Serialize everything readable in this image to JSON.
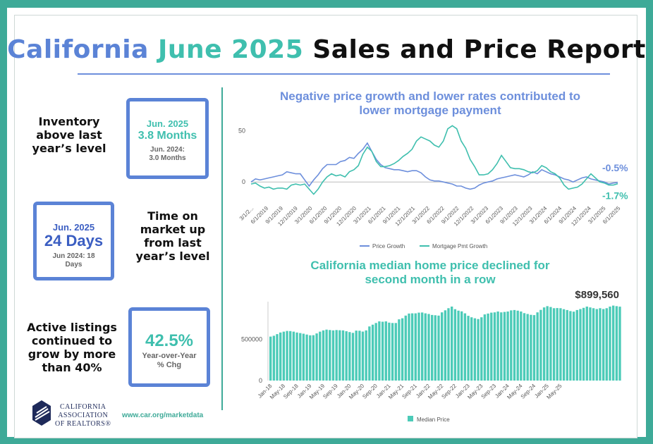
{
  "title": {
    "part1": "California",
    "part2": "June 2025",
    "part3": "Sales and Price Report"
  },
  "stats": {
    "inventory_label": [
      "Inventory",
      "above last",
      "year’s level"
    ],
    "inventory_box": {
      "date": "Jun. 2025",
      "value": "3.8 Months",
      "prior": [
        "Jun. 2024:",
        "3.0 Months"
      ]
    },
    "dom_box": {
      "date": "Jun. 2025",
      "value": "24 Days",
      "prior": [
        "Jun 2024: 18",
        "Days"
      ]
    },
    "dom_label": [
      "Time on",
      "market up",
      "from last",
      "year’s level"
    ],
    "listings_label": [
      "Active listings",
      "continued to",
      "grow by more",
      "than 40%"
    ],
    "listings_box": {
      "value": "42.5%",
      "sub": [
        "Year-over-Year",
        "% Chg"
      ]
    }
  },
  "logo": {
    "lines": [
      "CALIFORNIA",
      "ASSOCIATION",
      "OF REALTORS®"
    ]
  },
  "url": "www.car.org/marketdata",
  "colors": {
    "teal": "#3fbfae",
    "blue": "#6d8fdc",
    "frame": "#3eaa98",
    "bar": "#4ccbb8"
  },
  "chart_data": [
    {
      "type": "line",
      "title": [
        "Negative price growth and lower rates contributed to",
        "lower mortgage payment"
      ],
      "x_labels": [
        "3/1/2...",
        "6/1/2019",
        "9/1/2019",
        "12/1/2019",
        "3/1/2020",
        "6/1/2020",
        "9/1/2020",
        "12/1/2020",
        "3/1/2021",
        "6/1/2021",
        "9/1/2021",
        "12/1/2021",
        "3/1/2022",
        "6/1/2022",
        "9/1/2022",
        "12/1/2022",
        "3/1/2023",
        "6/1/2023",
        "9/1/2023",
        "12/1/2023",
        "3/1/2024",
        "6/1/2024",
        "9/1/2024",
        "12/1/2024",
        "3/1/2025",
        "6/1/2025"
      ],
      "y_ticks": [
        0,
        50
      ],
      "ylim": [
        -15,
        58
      ],
      "series": [
        {
          "name": "Price Growth",
          "color": "#6d8fdc",
          "values": [
            0,
            3,
            2,
            3,
            4,
            5,
            6,
            7,
            10,
            9,
            8,
            8,
            2,
            -4,
            2,
            7,
            13,
            17,
            17,
            17,
            20,
            21,
            24,
            23,
            28,
            32,
            38,
            30,
            22,
            17,
            14,
            13,
            12,
            12,
            11,
            10,
            11,
            11,
            9,
            5,
            2,
            1,
            1,
            0,
            -1,
            -2,
            -4,
            -4,
            -6,
            -7,
            -6,
            -3,
            -1,
            0,
            1,
            3,
            4,
            5,
            6,
            7,
            6,
            5,
            7,
            10,
            8,
            12,
            10,
            8,
            7,
            5,
            3,
            2,
            0,
            2,
            4,
            5,
            3,
            2,
            1,
            0,
            -2,
            -1,
            -0.5
          ]
        },
        {
          "name": "Mortgage Pmt Growth",
          "color": "#3fbfae",
          "values": [
            -2,
            -1,
            -4,
            -6,
            -5,
            -7,
            -6,
            -6,
            -7,
            -3,
            -2,
            -3,
            -2,
            -7,
            -12,
            -7,
            0,
            5,
            8,
            6,
            7,
            5,
            10,
            12,
            16,
            27,
            34,
            30,
            20,
            15,
            15,
            16,
            18,
            21,
            25,
            28,
            32,
            40,
            44,
            42,
            40,
            36,
            34,
            40,
            52,
            55,
            52,
            40,
            33,
            22,
            15,
            7,
            7,
            8,
            12,
            18,
            26,
            20,
            14,
            13,
            13,
            12,
            10,
            9,
            11,
            16,
            14,
            10,
            8,
            4,
            -3,
            -7,
            -6,
            -5,
            -2,
            3,
            8,
            4,
            0,
            -1,
            -3,
            -3,
            -1.7
          ]
        }
      ],
      "end_labels": [
        "-0.5%",
        "-1.7%"
      ]
    },
    {
      "type": "bar",
      "title": [
        "California median home price declined for",
        "second month in a row"
      ],
      "y_ticks": [
        0,
        500000
      ],
      "ylim": [
        0,
        960000
      ],
      "x_labels": [
        "Jan-18",
        "May-18",
        "Sep-18",
        "Jan-19",
        "May-19",
        "Sep-19",
        "Jan-20",
        "May-20",
        "Sep-20",
        "Jan-21",
        "May-21",
        "Sep-21",
        "Jan-22",
        "May-22",
        "Sep-22",
        "Jan-23",
        "May-23",
        "Sep-23",
        "Jan-24",
        "May-24",
        "Sep-24",
        "Jan-25",
        "May-25"
      ],
      "series": [
        {
          "name": "Median Price",
          "color": "#4ccbb8",
          "values": [
            535000,
            545000,
            565000,
            585000,
            595000,
            603000,
            602000,
            595000,
            585000,
            578000,
            570000,
            560000,
            550000,
            552000,
            573000,
            595000,
            610000,
            620000,
            615000,
            610000,
            615000,
            612000,
            610000,
            600000,
            590000,
            580000,
            608000,
            606000,
            596000,
            610000,
            658000,
            680000,
            700000,
            720000,
            716000,
            720000,
            705000,
            700000,
            700000,
            745000,
            758000,
            790000,
            815000,
            818000,
            818000,
            826000,
            828000,
            818000,
            810000,
            798000,
            795000,
            790000,
            830000,
            855000,
            880000,
            900000,
            868000,
            850000,
            842000,
            818000,
            788000,
            770000,
            758000,
            748000,
            770000,
            805000,
            815000,
            826000,
            830000,
            840000,
            830000,
            835000,
            840000,
            854000,
            858000,
            850000,
            840000,
            820000,
            810000,
            800000,
            796000,
            830000,
            860000,
            890000,
            905000,
            895000,
            880000,
            882000,
            880000,
            868000,
            858000,
            845000,
            838000,
            858000,
            870000,
            885000,
            900000,
            890000,
            880000,
            870000,
            880000,
            870000,
            880000,
            900000,
            912000,
            905000,
            899560
          ]
        }
      ],
      "end_label": "$899,560"
    }
  ]
}
